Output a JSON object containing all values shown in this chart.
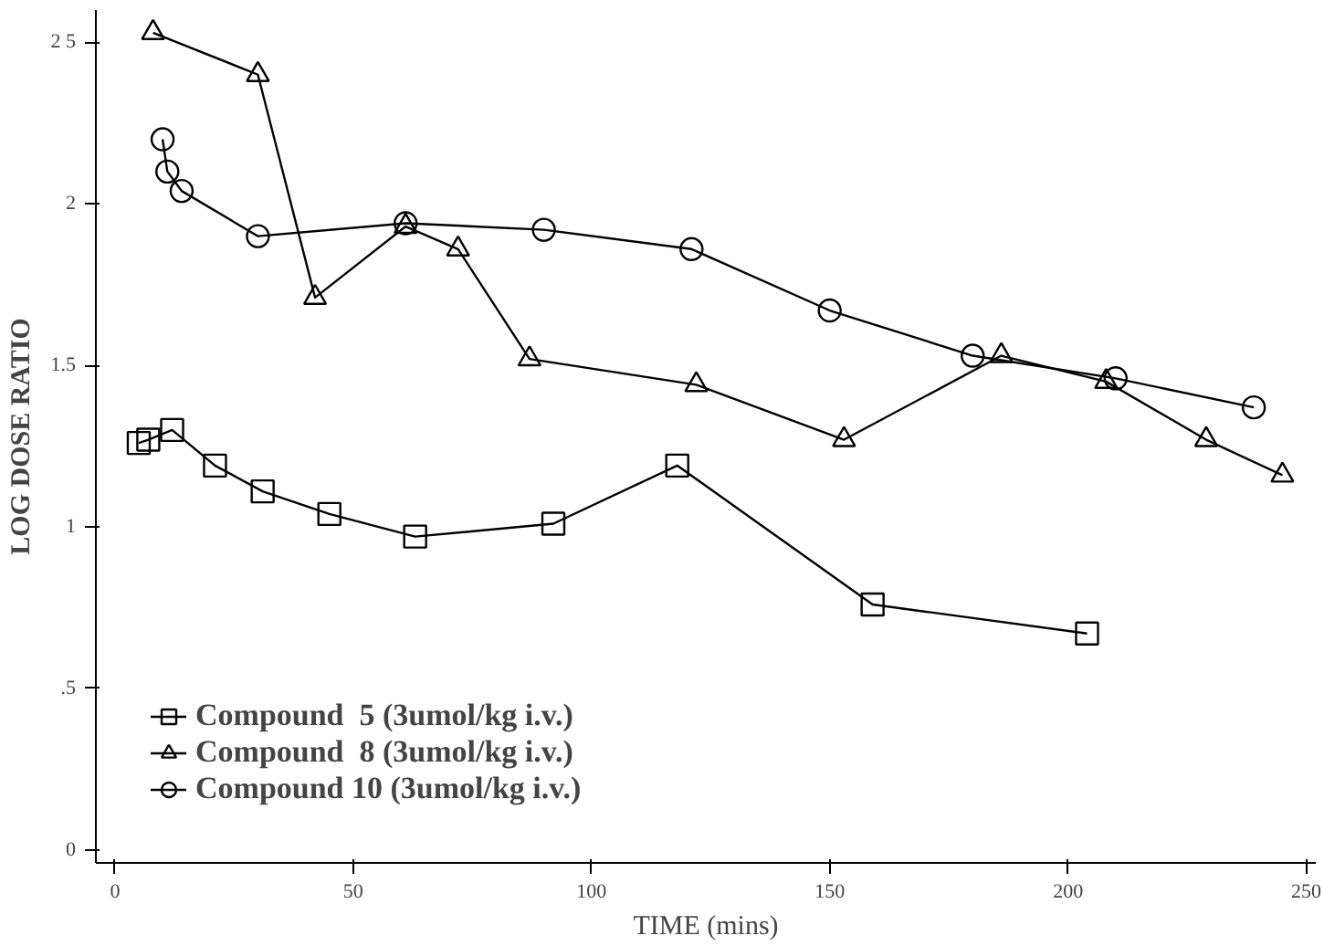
{
  "chart_data": {
    "type": "line",
    "xlabel": "TIME (mins)",
    "ylabel": "LOG DOSE RATIO",
    "xlim": [
      -4,
      252
    ],
    "ylim": [
      -0.04,
      2.6
    ],
    "xticks": [
      0,
      50,
      100,
      150,
      200,
      250
    ],
    "yticks": [
      0,
      {
        "value": 0.5,
        "label": ".5"
      },
      1,
      1.5,
      2,
      {
        "value": 2.5,
        "label": "2 5"
      }
    ],
    "legend": "bottom left",
    "grid": false,
    "series": [
      {
        "name": "Compound  5 (3umol/kg i.v.)",
        "color": "#000000",
        "marker": "square",
        "x": [
          5,
          7,
          12,
          21,
          31,
          45,
          63,
          92,
          118,
          159,
          204
        ],
        "values": [
          1.26,
          1.27,
          1.3,
          1.19,
          1.11,
          1.04,
          0.97,
          1.01,
          1.19,
          0.76,
          0.67
        ]
      },
      {
        "name": "Compound  8 (3umol/kg i.v.)",
        "color": "#000000",
        "marker": "triangle",
        "x": [
          8,
          30,
          42,
          61,
          72,
          87,
          122,
          153,
          186,
          208,
          229,
          245
        ],
        "values": [
          2.53,
          2.4,
          1.71,
          1.93,
          1.86,
          1.52,
          1.44,
          1.27,
          1.53,
          1.45,
          1.27,
          1.16
        ]
      },
      {
        "name": "Compound 10 (3umol/kg i.v.)",
        "color": "#000000",
        "marker": "circle",
        "x": [
          10,
          11,
          14,
          30,
          61,
          90,
          121,
          150,
          180,
          210,
          239
        ],
        "values": [
          2.2,
          2.1,
          2.04,
          1.9,
          1.94,
          1.92,
          1.86,
          1.67,
          1.53,
          1.46,
          1.37
        ]
      }
    ]
  }
}
